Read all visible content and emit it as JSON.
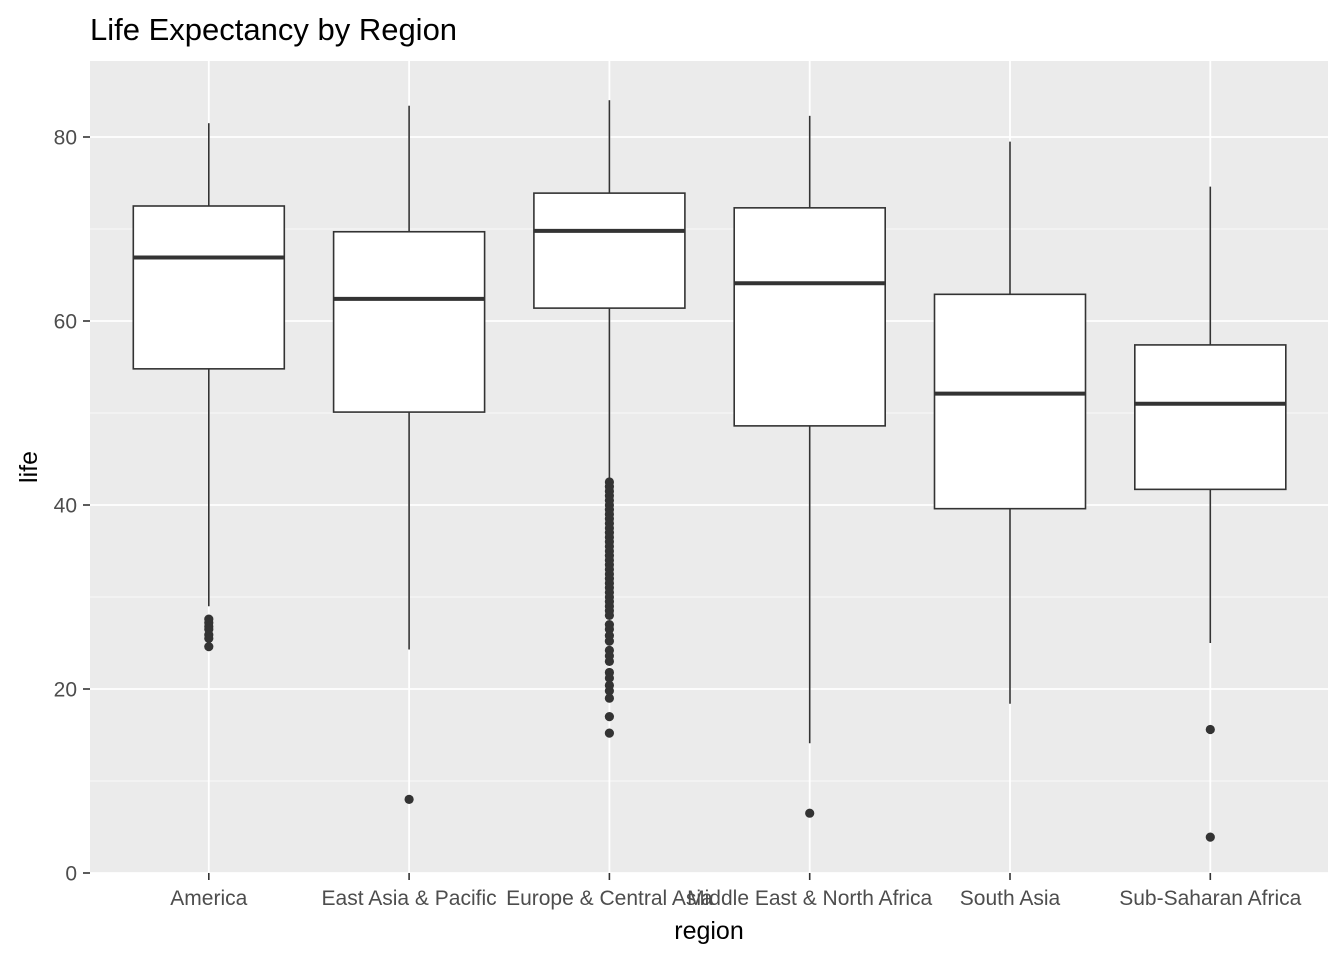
{
  "chart_data": {
    "type": "boxplot",
    "title": "Life Expectancy by Region",
    "xlabel": "region",
    "ylabel": "life",
    "ylim": [
      0,
      88
    ],
    "y_ticks": [
      0,
      20,
      40,
      60,
      80
    ],
    "y_tick_labels": [
      "0",
      "20",
      "40",
      "60",
      "80"
    ],
    "grid": true,
    "categories": [
      "America",
      "East Asia & Pacific",
      "Europe & Central Asia",
      "Middle East & North Africa",
      "South Asia",
      "Sub-Saharan Africa"
    ],
    "boxes": [
      {
        "region": "America",
        "whisker_low": 29.0,
        "q1": 54.8,
        "median": 66.9,
        "q3": 72.5,
        "whisker_high": 81.5,
        "outliers": [
          27.6,
          27.2,
          26.8,
          26.5,
          25.9,
          25.5,
          24.6
        ]
      },
      {
        "region": "East Asia & Pacific",
        "whisker_low": 24.3,
        "q1": 50.1,
        "median": 62.4,
        "q3": 69.7,
        "whisker_high": 83.4,
        "outliers": [
          8.0
        ]
      },
      {
        "region": "Europe & Central Asia",
        "whisker_low": 42.8,
        "q1": 61.4,
        "median": 69.8,
        "q3": 73.9,
        "whisker_high": 84.0,
        "outliers": [
          42.5,
          42.0,
          41.5,
          41.0,
          40.5,
          40.0,
          39.5,
          39.0,
          38.5,
          38.0,
          37.5,
          37.0,
          36.5,
          36.0,
          35.5,
          35.0,
          34.5,
          34.0,
          33.5,
          33.0,
          32.5,
          32.0,
          31.5,
          31.0,
          30.5,
          30.0,
          29.5,
          29.0,
          28.5,
          28.0,
          27.0,
          26.5,
          25.8,
          25.2,
          24.2,
          23.6,
          23.0,
          21.8,
          21.2,
          20.4,
          19.8,
          19.0,
          17.0,
          15.2
        ]
      },
      {
        "region": "Middle East & North Africa",
        "whisker_low": 14.1,
        "q1": 48.6,
        "median": 64.1,
        "q3": 72.3,
        "whisker_high": 82.3,
        "outliers": [
          6.5
        ]
      },
      {
        "region": "South Asia",
        "whisker_low": 18.4,
        "q1": 39.6,
        "median": 52.1,
        "q3": 62.9,
        "whisker_high": 79.5,
        "outliers": []
      },
      {
        "region": "Sub-Saharan Africa",
        "whisker_low": 25.0,
        "q1": 41.7,
        "median": 51.0,
        "q3": 57.4,
        "whisker_high": 74.6,
        "outliers": [
          15.6,
          3.9
        ]
      }
    ],
    "colors": {
      "panel_background": "#ebebeb",
      "grid_major": "#ffffff",
      "box_fill": "#ffffff",
      "box_line": "#333333",
      "outlier": "#333333",
      "tick_mark": "#333333"
    }
  }
}
